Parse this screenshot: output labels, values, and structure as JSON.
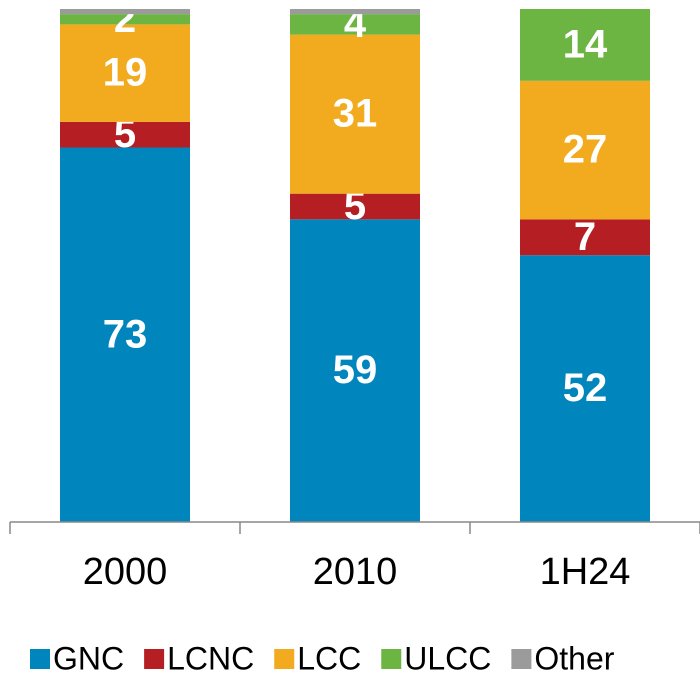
{
  "chart_data": {
    "type": "stacked_bar",
    "categories": [
      "2000",
      "2010",
      "1H24"
    ],
    "series": [
      {
        "name": "GNC",
        "color": "#0085bd",
        "values": [
          73,
          59,
          52
        ]
      },
      {
        "name": "LCNC",
        "color": "#b51f24",
        "values": [
          5,
          5,
          7
        ]
      },
      {
        "name": "LCC",
        "color": "#f2ab1e",
        "values": [
          19,
          31,
          27
        ]
      },
      {
        "name": "ULCC",
        "color": "#6db543",
        "values": [
          2,
          4,
          14
        ]
      },
      {
        "name": "Other",
        "color": "#9b9b9b",
        "values": [
          1,
          1,
          0
        ],
        "show_labels": false
      }
    ],
    "ylim": [
      0,
      100
    ]
  }
}
